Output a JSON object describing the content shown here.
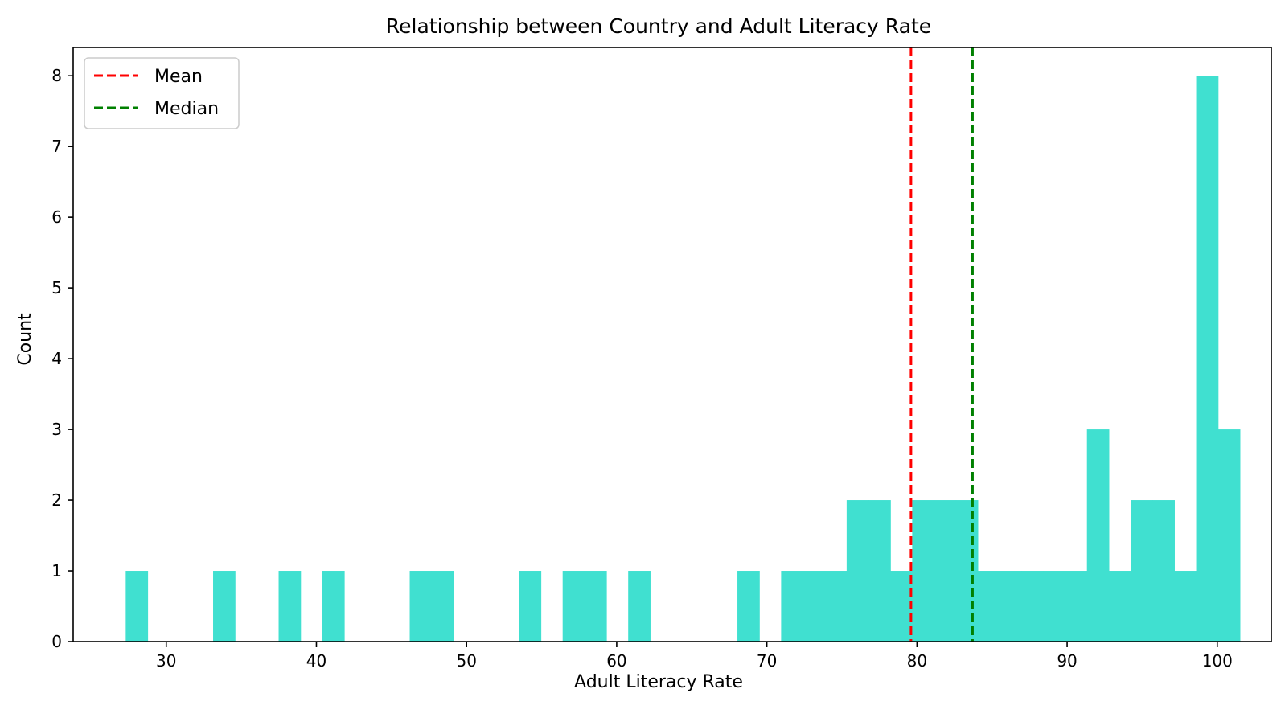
{
  "chart_data": {
    "type": "bar",
    "title": "Relationship between Country and Adult Literacy Rate",
    "xlabel": "Adult Literacy Rate",
    "ylabel": "Count",
    "xlim": [
      23.8,
      103.6
    ],
    "ylim": [
      0,
      8.4
    ],
    "xticks": [
      30,
      40,
      50,
      60,
      70,
      80,
      90,
      100
    ],
    "yticks": [
      0,
      1,
      2,
      3,
      4,
      5,
      6,
      7,
      8
    ],
    "bin_start": 27.3,
    "bin_width": 1.455,
    "counts": [
      1,
      0,
      0,
      0,
      1,
      0,
      0,
      1,
      0,
      1,
      0,
      0,
      0,
      1,
      1,
      0,
      0,
      0,
      1,
      0,
      1,
      1,
      0,
      1,
      0,
      0,
      0,
      0,
      1,
      0,
      1,
      1,
      1,
      2,
      2,
      1,
      2,
      2,
      2,
      1,
      1,
      1,
      1,
      1,
      3,
      1,
      2,
      2,
      1,
      8,
      3
    ],
    "bar_color": "#40e0d0",
    "grid": false,
    "legend_position": "top-left",
    "lines": [
      {
        "name": "Mean",
        "value": 79.6,
        "color": "#ff0000",
        "style": "dashed"
      },
      {
        "name": "Median",
        "value": 83.7,
        "color": "#008000",
        "style": "dashed"
      }
    ]
  }
}
